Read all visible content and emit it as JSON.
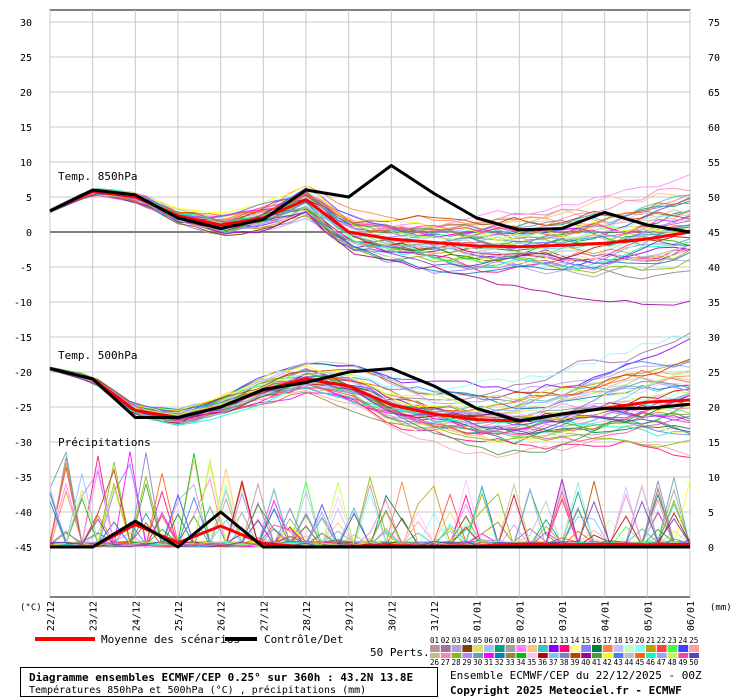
{
  "chart_data": {
    "type": "line",
    "x_dates": [
      "22/12",
      "23/12",
      "24/12",
      "25/12",
      "26/12",
      "27/12",
      "28/12",
      "29/12",
      "30/12",
      "31/12",
      "01/01",
      "02/01",
      "03/01",
      "04/01",
      "05/01",
      "06/01"
    ],
    "y_left_ticks": [
      30,
      25,
      20,
      15,
      10,
      5,
      0,
      -5,
      -10,
      -15,
      -20,
      -25,
      -30,
      -35,
      -40,
      -45
    ],
    "y_right_ticks": [
      75,
      70,
      65,
      60,
      55,
      50,
      45,
      40,
      35,
      30,
      25,
      20,
      15,
      10,
      5,
      0
    ],
    "left_unit": "(°C)",
    "right_unit": "(mm)",
    "ylim_left": [
      -45,
      30
    ],
    "ylim_right": [
      0,
      75
    ],
    "panel_labels": {
      "t850": "Temp. 850hPa",
      "t500": "Temp. 500hPa",
      "precip": "Précipitations"
    },
    "series": [
      {
        "name": "Moyenne des scénarios",
        "color": "#ff0000",
        "t850": [
          3,
          5.8,
          5,
          2.3,
          1,
          2,
          4.6,
          0,
          -1,
          -1.5,
          -2,
          -2.1,
          -1.9,
          -1.6,
          -1,
          0
        ],
        "t500": [
          -19.5,
          -21,
          -25.5,
          -26.5,
          -25,
          -22.6,
          -21,
          -22,
          -24.7,
          -26,
          -26.8,
          -27,
          -26,
          -25.2,
          -24.3,
          -24
        ],
        "precip": [
          0,
          0,
          3.2,
          0.6,
          3,
          0.5,
          0,
          0.1,
          0.2,
          0.1,
          0.1,
          0.4,
          0.3,
          0.4,
          0.3,
          0.4
        ]
      },
      {
        "name": "Contrôle/Det",
        "color": "#000000",
        "t850": [
          3,
          6,
          5.3,
          2,
          0.5,
          1.8,
          6,
          5,
          9.5,
          5.5,
          2,
          0.3,
          0.5,
          2.8,
          1,
          0
        ],
        "t500": [
          -19.5,
          -21,
          -26.5,
          -26.5,
          -25,
          -22.5,
          -21.5,
          -20,
          -19.5,
          -22,
          -25.2,
          -27,
          -26,
          -25.2,
          -25.2,
          -24.6
        ],
        "precip": [
          0,
          0,
          3.7,
          0,
          5,
          0,
          0,
          0,
          0,
          0,
          0,
          0,
          0,
          0,
          0,
          0
        ]
      }
    ],
    "members_count": "50 Perts.",
    "member_labels": [
      "01",
      "02",
      "03",
      "04",
      "05",
      "06",
      "07",
      "08",
      "09",
      "10",
      "11",
      "12",
      "13",
      "14",
      "15",
      "16",
      "17",
      "18",
      "19",
      "20",
      "21",
      "22",
      "23",
      "24",
      "25",
      "26",
      "27",
      "28",
      "29",
      "30",
      "31",
      "32",
      "33",
      "34",
      "35",
      "36",
      "37",
      "38",
      "39",
      "40",
      "41",
      "42",
      "43",
      "44",
      "45",
      "46",
      "47",
      "48",
      "49",
      "50"
    ],
    "member_colors": [
      "#c090a0",
      "#a070a0",
      "#b0a0e0",
      "#804000",
      "#e0e060",
      "#a0c0ff",
      "#00a080",
      "#a0a0a0",
      "#ff80ff",
      "#ffc080",
      "#40c0c0",
      "#8000ff",
      "#ff0080",
      "#ffff80",
      "#8080ff",
      "#008040",
      "#ff8040",
      "#c0c0ff",
      "#c0ffc0",
      "#80ffff",
      "#c0a000",
      "#ff4040",
      "#40ff40",
      "#4040ff",
      "#ffa0a0",
      "#c0c080",
      "#ff80c0",
      "#80c000",
      "#c080ff",
      "#60a0a0",
      "#ff00ff",
      "#0080c0",
      "#a08040",
      "#00c000",
      "#ffc0ff",
      "#c00000",
      "#80c0ff",
      "#8080c0",
      "#c04000",
      "#a000a0",
      "#40a040",
      "#ffff00",
      "#4080ff",
      "#c0c0c0",
      "#ff6000",
      "#00ffc0",
      "#a0a0ff",
      "#c0ff40",
      "#ff40a0",
      "#6040c0"
    ]
  },
  "legend": {
    "mean_label": "Moyenne des scénarios",
    "control_label": "Contrôle/Det"
  },
  "footer": {
    "title": "Diagramme ensembles ECMWF/CEP 0.25° sur 360h : 43.2N 13.8E",
    "subtitle": "Températures 850hPa et 500hPa (°C) , précipitations (mm)",
    "run": "Ensemble ECMWF/CEP du 22/12/2025 - 00Z",
    "copyright": "Copyright 2025 Meteociel.fr - ECMWF"
  }
}
